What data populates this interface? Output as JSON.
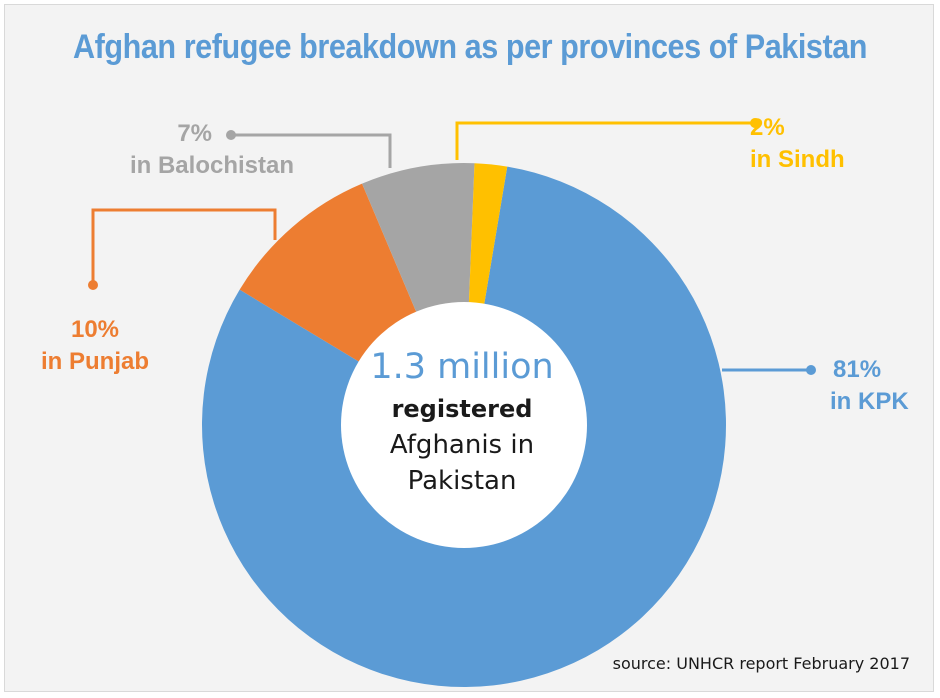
{
  "title": "Afghan refugee breakdown as per provinces of Pakistan",
  "colors": {
    "kpk": "#5b9bd5",
    "punjab": "#ed7d31",
    "balochistan": "#a5a5a5",
    "sindh": "#ffc000",
    "title": "#5b9bd5",
    "center_hole": "#ffffff"
  },
  "center": {
    "amount": "1.3 million",
    "bold": "registered",
    "line1": "Afghanis in",
    "line2": "Pakistan"
  },
  "labels": {
    "sindh": {
      "pct": "2%",
      "text": "in Sindh"
    },
    "balochistan": {
      "pct": "7%",
      "text": "in Balochistan"
    },
    "punjab": {
      "pct": "10%",
      "text": "in Punjab"
    },
    "kpk": {
      "pct": "81%",
      "text": "in KPK"
    }
  },
  "source": "source: UNHCR report February 2017",
  "chart_data": {
    "type": "pie",
    "title": "Afghan refugee breakdown as per provinces of Pakistan",
    "categories": [
      "KPK",
      "Punjab",
      "Balochistan",
      "Sindh"
    ],
    "values": [
      81,
      10,
      7,
      2
    ],
    "unit": "%",
    "donut": true,
    "total": "1.3 million registered Afghanis in Pakistan"
  }
}
